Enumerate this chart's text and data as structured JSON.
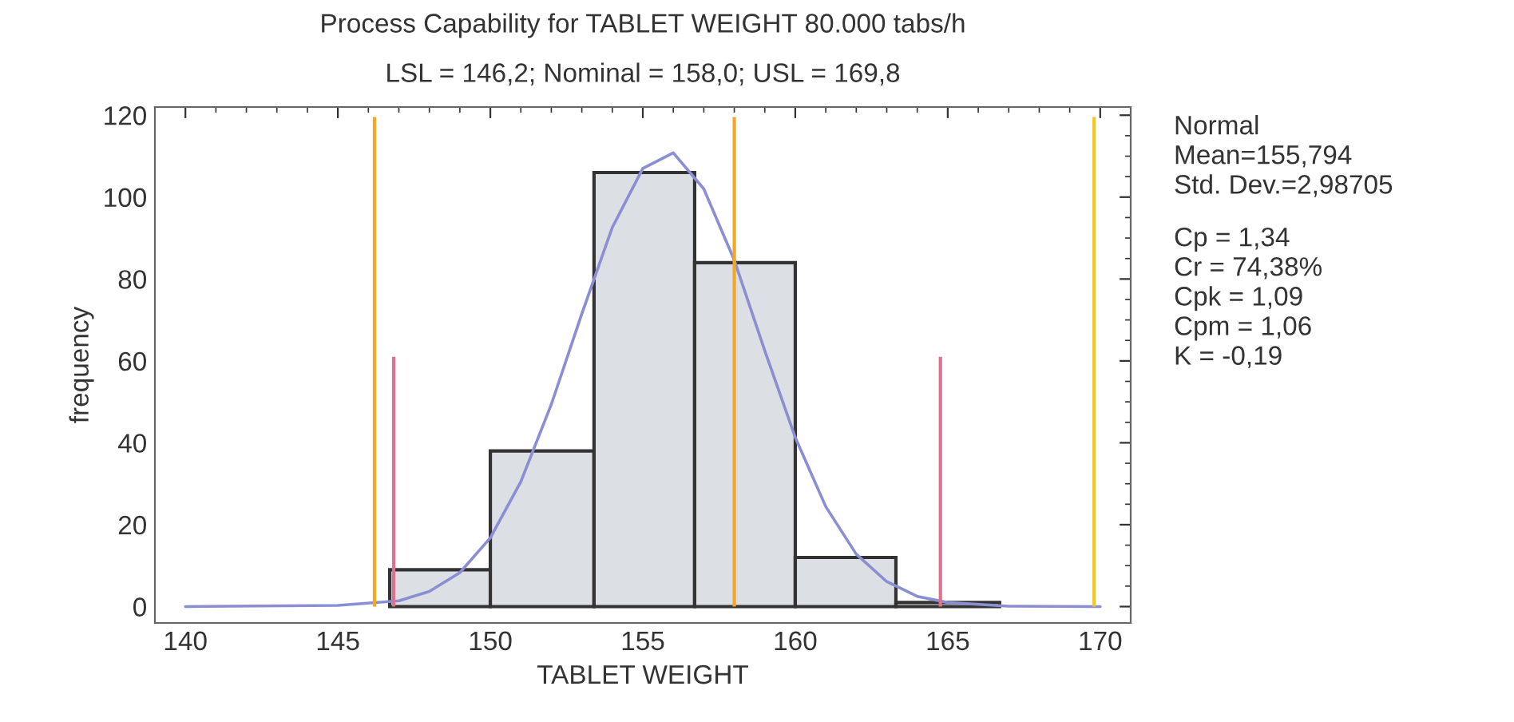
{
  "chart_data": {
    "type": "histogram",
    "title": "Process Capability for TABLET WEIGHT 80.000 tabs/h",
    "subtitle": "LSL = 146,2; Nominal = 158,0; USL = 169,8",
    "xlabel": "TABLET WEIGHT",
    "ylabel": "frequency",
    "bins": [
      146.7,
      150.0,
      153.4,
      156.7,
      160.0,
      163.3,
      166.7
    ],
    "values": [
      9,
      38,
      106,
      84,
      12,
      1
    ],
    "color": "#dcdfe4",
    "series": [
      {
        "type": "line",
        "color": "#8a8ed2",
        "x": [
          140,
          145,
          147,
          148,
          149,
          150,
          151,
          152,
          153,
          154,
          155,
          156,
          157,
          158,
          159,
          160,
          161,
          162,
          163,
          164,
          165,
          167,
          170
        ],
        "values": [
          0,
          0.3,
          1.4,
          3.7,
          8.3,
          16.8,
          30.5,
          49.4,
          71.5,
          92.6,
          107,
          110.8,
          102,
          84.6,
          62.5,
          41.3,
          24.4,
          12.8,
          6.1,
          2.5,
          1,
          0.1,
          0
        ]
      }
    ],
    "ref_lines": [
      {
        "axis": "x",
        "value": 146.2,
        "color": "#f5a623"
      },
      {
        "axis": "x",
        "value": 158.0,
        "color": "#f5a623"
      },
      {
        "axis": "x",
        "value": 169.8,
        "color": "#f5c623"
      },
      {
        "axis": "x",
        "value": 146.83,
        "color": "#e07090"
      },
      {
        "axis": "x",
        "value": 164.76,
        "color": "#e07090"
      }
    ],
    "annotations": [
      "Normal\nMean=155,794\nStd. Dev.=2,98705",
      "Cp = 1,34\nCr = 74,38%\nCpk = 1,09\nCpm = 1,06\nK = -0,19"
    ],
    "xlim": [
      139,
      171
    ],
    "ylim": [
      -4,
      122
    ],
    "xticks": [
      140,
      145,
      150,
      155,
      160,
      165,
      170
    ],
    "yticks": [
      0,
      20,
      40,
      60,
      80,
      100,
      120
    ],
    "grid": false,
    "legend": false
  }
}
